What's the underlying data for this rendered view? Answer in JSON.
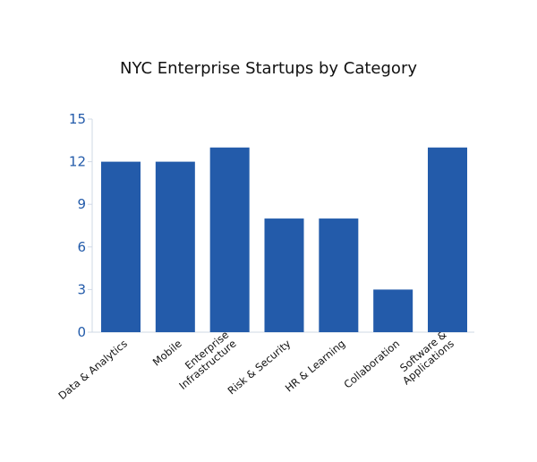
{
  "chart_data": {
    "type": "bar",
    "title": "NYC Enterprise Startups by Category",
    "xlabel": "",
    "ylabel": "",
    "categories": [
      [
        "Data & Analytics"
      ],
      [
        "Mobile"
      ],
      [
        "Enterprise",
        "Infrastructure"
      ],
      [
        "Risk & Security"
      ],
      [
        "HR & Learning"
      ],
      [
        "Collaboration"
      ],
      [
        "Software &",
        "Applications"
      ]
    ],
    "values": [
      12,
      12,
      13,
      8,
      8,
      3,
      13
    ],
    "ylim": [
      0,
      15
    ],
    "yticks": [
      0,
      3,
      6,
      9,
      12,
      15
    ],
    "grid": false,
    "colors": {
      "bar": "#235BAA",
      "axis": "#cfd8e6",
      "tick_label": "#235BAA"
    }
  }
}
